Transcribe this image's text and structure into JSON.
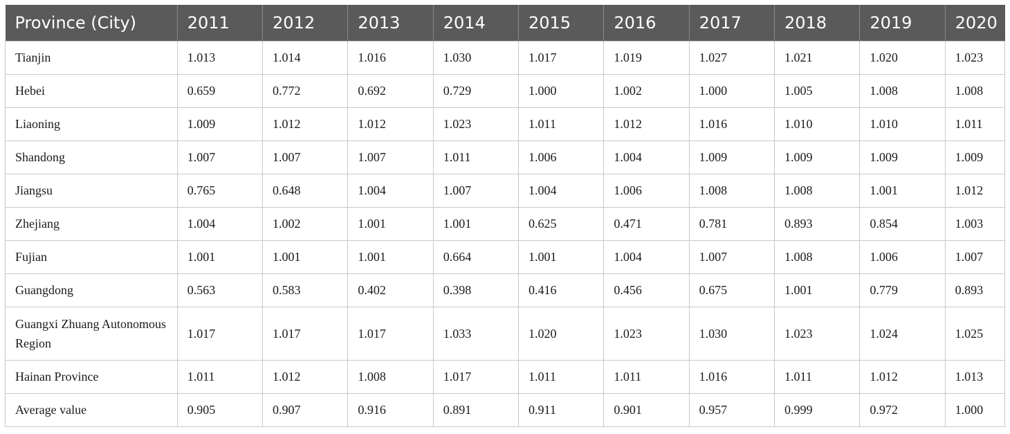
{
  "table": {
    "headers": [
      "Province (City)",
      "2011",
      "2012",
      "2013",
      "2014",
      "2015",
      "2016",
      "2017",
      "2018",
      "2019",
      "2020"
    ],
    "rows": [
      [
        "Tianjin",
        "1.013",
        "1.014",
        "1.016",
        "1.030",
        "1.017",
        "1.019",
        "1.027",
        "1.021",
        "1.020",
        "1.023"
      ],
      [
        "Hebei",
        "0.659",
        "0.772",
        "0.692",
        "0.729",
        "1.000",
        "1.002",
        "1.000",
        "1.005",
        "1.008",
        "1.008"
      ],
      [
        "Liaoning",
        "1.009",
        "1.012",
        "1.012",
        "1.023",
        "1.011",
        "1.012",
        "1.016",
        "1.010",
        "1.010",
        "1.011"
      ],
      [
        "Shandong",
        "1.007",
        "1.007",
        "1.007",
        "1.011",
        "1.006",
        "1.004",
        "1.009",
        "1.009",
        "1.009",
        "1.009"
      ],
      [
        "Jiangsu",
        "0.765",
        "0.648",
        "1.004",
        "1.007",
        "1.004",
        "1.006",
        "1.008",
        "1.008",
        "1.001",
        "1.012"
      ],
      [
        "Zhejiang",
        "1.004",
        "1.002",
        "1.001",
        "1.001",
        "0.625",
        "0.471",
        "0.781",
        "0.893",
        "0.854",
        "1.003"
      ],
      [
        "Fujian",
        "1.001",
        "1.001",
        "1.001",
        "0.664",
        "1.001",
        "1.004",
        "1.007",
        "1.008",
        "1.006",
        "1.007"
      ],
      [
        "Guangdong",
        "0.563",
        "0.583",
        "0.402",
        "0.398",
        "0.416",
        "0.456",
        "0.675",
        "1.001",
        "0.779",
        "0.893"
      ],
      [
        "Guangxi Zhuang Autonomous Region",
        "1.017",
        "1.017",
        "1.017",
        "1.033",
        "1.020",
        "1.023",
        "1.030",
        "1.023",
        "1.024",
        "1.025"
      ],
      [
        "Hainan Province",
        "1.011",
        "1.012",
        "1.008",
        "1.017",
        "1.011",
        "1.011",
        "1.016",
        "1.011",
        "1.012",
        "1.013"
      ],
      [
        "Average value",
        "0.905",
        "0.907",
        "0.916",
        "0.891",
        "0.911",
        "0.901",
        "0.957",
        "0.999",
        "0.972",
        "1.000"
      ]
    ]
  }
}
